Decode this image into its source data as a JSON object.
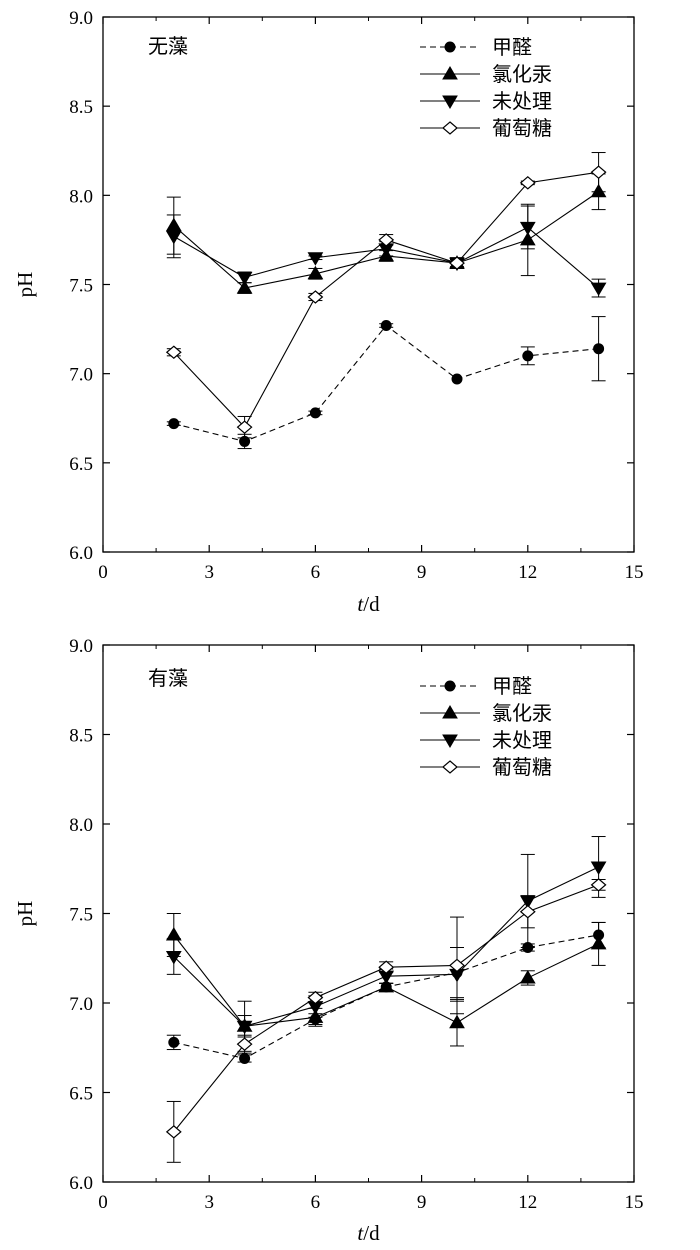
{
  "chart_data": [
    {
      "type": "line",
      "panel_label": "无藻",
      "xlabel_italic": "t",
      "xlabel_rest": "/d",
      "ylabel": "pH",
      "xlim": [
        0,
        15
      ],
      "ylim": [
        6.0,
        9.0
      ],
      "xticks": [
        0,
        3,
        6,
        9,
        12,
        15
      ],
      "yticks": [
        "6.0",
        "6.5",
        "7.0",
        "7.5",
        "8.0",
        "8.5",
        "9.0"
      ],
      "legend_position": "top-right",
      "grid": false,
      "x": [
        2,
        4,
        6,
        8,
        10,
        12,
        14
      ],
      "series": [
        {
          "name": "甲醛",
          "marker": "circle",
          "line": "dashed",
          "values": [
            6.72,
            6.62,
            6.78,
            7.27,
            6.97,
            7.1,
            7.14
          ],
          "errors": [
            0.01,
            0.04,
            0.01,
            0.01,
            0.0,
            0.05,
            0.18
          ]
        },
        {
          "name": "氯化汞",
          "marker": "triangle-up",
          "line": "solid",
          "values": [
            7.83,
            7.48,
            7.56,
            7.66,
            7.62,
            7.75,
            8.02
          ],
          "errors": [
            0.16,
            0.03,
            0.03,
            0.03,
            0.02,
            0.2,
            0.1
          ]
        },
        {
          "name": "未处理",
          "marker": "triangle-down",
          "line": "solid",
          "values": [
            7.77,
            7.54,
            7.65,
            7.7,
            7.62,
            7.82,
            7.48
          ],
          "errors": [
            0.12,
            0.03,
            0.01,
            0.04,
            0.03,
            0.12,
            0.05
          ]
        },
        {
          "name": "葡萄糖",
          "marker": "diamond-open",
          "line": "solid",
          "values": [
            7.12,
            6.7,
            7.43,
            7.75,
            7.62,
            8.07,
            8.13
          ],
          "errors": [
            0.02,
            0.06,
            0.02,
            0.03,
            0.03,
            0.01,
            0.11
          ]
        }
      ]
    },
    {
      "type": "line",
      "panel_label": "有藻",
      "xlabel_italic": "t",
      "xlabel_rest": "/d",
      "ylabel": "pH",
      "xlim": [
        0,
        15
      ],
      "ylim": [
        6.0,
        9.0
      ],
      "xticks": [
        0,
        3,
        6,
        9,
        12,
        15
      ],
      "yticks": [
        "6.0",
        "6.5",
        "7.0",
        "7.5",
        "8.0",
        "8.5",
        "9.0"
      ],
      "legend_position": "top-right",
      "grid": false,
      "x": [
        2,
        4,
        6,
        8,
        10,
        12,
        14
      ],
      "series": [
        {
          "name": "甲醛",
          "marker": "circle",
          "line": "dashed",
          "values": [
            6.78,
            6.69,
            6.91,
            7.09,
            7.17,
            7.31,
            7.38
          ],
          "errors": [
            0.04,
            0.02,
            0.03,
            0.02,
            0.14,
            0.02,
            0.07
          ]
        },
        {
          "name": "氯化汞",
          "marker": "triangle-up",
          "line": "solid",
          "values": [
            7.38,
            6.87,
            6.92,
            7.09,
            6.89,
            7.14,
            7.33
          ],
          "errors": [
            0.12,
            0.14,
            0.05,
            0.02,
            0.13,
            0.04,
            0.12
          ]
        },
        {
          "name": "未处理",
          "marker": "triangle-down",
          "line": "solid",
          "values": [
            7.26,
            6.87,
            6.98,
            7.15,
            7.16,
            7.57,
            7.76
          ],
          "errors": [
            0.1,
            0.06,
            0.06,
            0.04,
            0.15,
            0.26,
            0.17
          ]
        },
        {
          "name": "葡萄糖",
          "marker": "diamond-open",
          "line": "solid",
          "values": [
            6.28,
            6.77,
            7.03,
            7.2,
            7.21,
            7.51,
            7.66
          ],
          "errors": [
            0.17,
            0.05,
            0.03,
            0.03,
            0.27,
            0.09,
            0.03
          ]
        }
      ]
    }
  ]
}
